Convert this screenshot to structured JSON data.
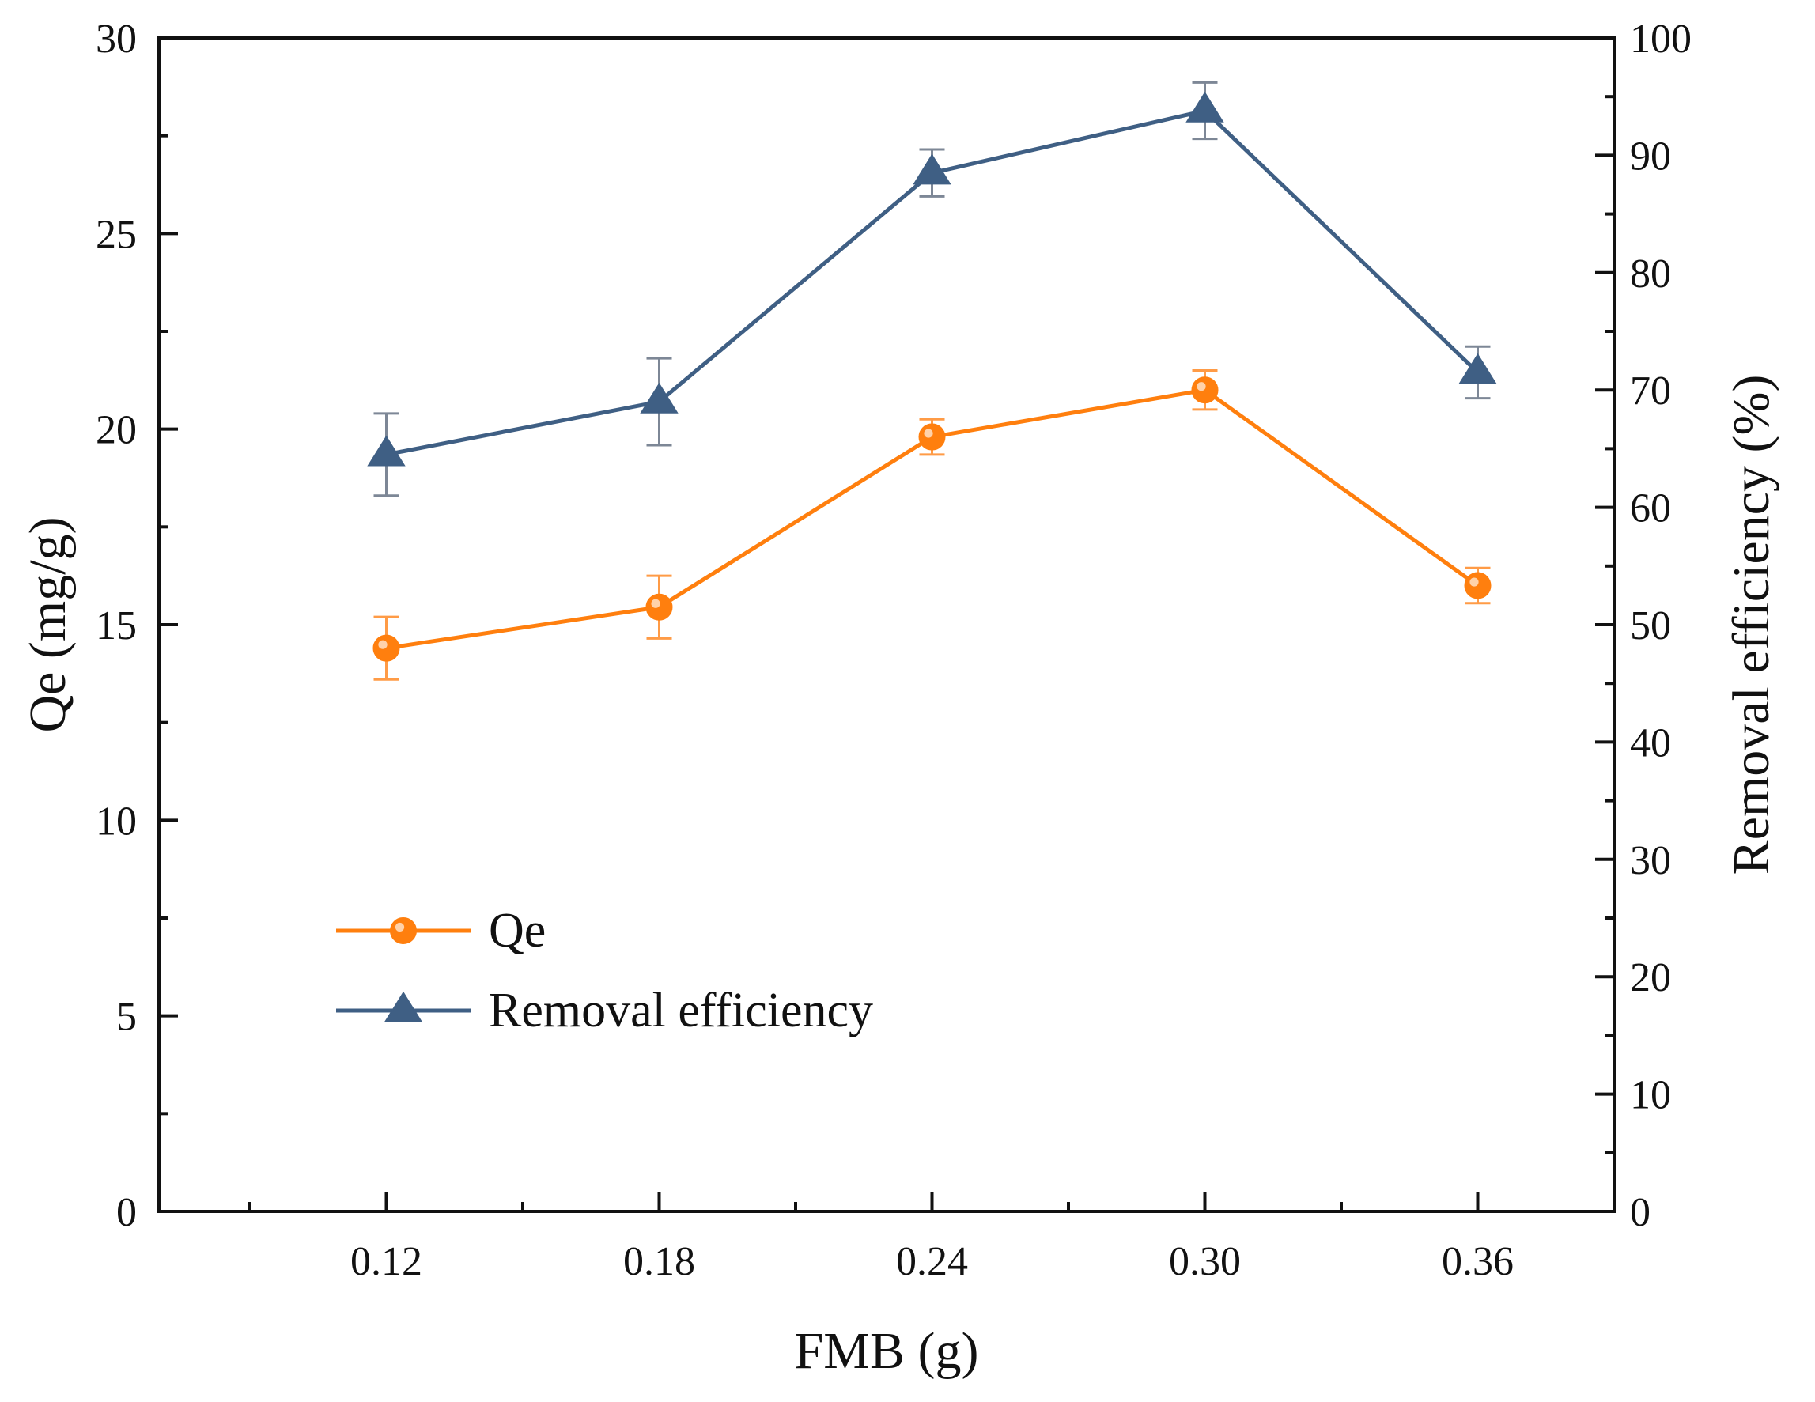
{
  "chart_data": {
    "type": "line",
    "xlabel": "FMB (g)",
    "ylabel": "Qe (mg/g)",
    "y2label": "Removal efficiency (%)",
    "x": [
      0.12,
      0.18,
      0.24,
      0.3,
      0.36
    ],
    "x_tick_labels": [
      "0.12",
      "0.18",
      "0.24",
      "0.30",
      "0.36"
    ],
    "xlim": [
      0.07,
      0.39
    ],
    "ylim": [
      0,
      30
    ],
    "y2lim": [
      0,
      100
    ],
    "y_ticks": [
      0,
      5,
      10,
      15,
      20,
      25,
      30
    ],
    "y2_ticks": [
      0,
      10,
      20,
      30,
      40,
      50,
      60,
      70,
      80,
      90,
      100
    ],
    "grid": false,
    "legend_position": "lower-left",
    "series": [
      {
        "name": "Qe",
        "axis": "left",
        "marker": "circle",
        "color": "#ff7f0e",
        "values": [
          14.4,
          15.45,
          19.8,
          21.0,
          16.0
        ],
        "errors": [
          0.8,
          0.8,
          0.45,
          0.5,
          0.45
        ]
      },
      {
        "name": "Removal efficiency",
        "axis": "right",
        "marker": "triangle",
        "color": "#3f5f84",
        "values": [
          64.5,
          69.0,
          88.5,
          93.8,
          71.5
        ],
        "errors": [
          3.5,
          3.7,
          2.0,
          2.4,
          2.2
        ]
      }
    ]
  }
}
